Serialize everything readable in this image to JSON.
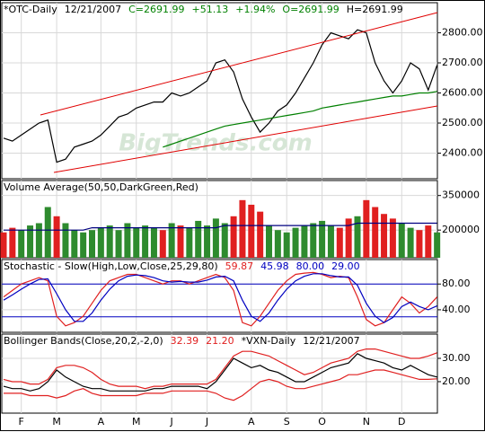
{
  "chart_data": [
    {
      "type": "line",
      "title_parts": [
        {
          "text": "*OTC-Daily",
          "color": "#000000"
        },
        {
          "text": "12/21/2007",
          "color": "#000000"
        },
        {
          "text": "C=2691.99",
          "color": "#008000"
        },
        {
          "text": "+51.13",
          "color": "#008000"
        },
        {
          "text": "+1.94%",
          "color": "#008000"
        },
        {
          "text": "O=2691.99",
          "color": "#008000"
        },
        {
          "text": "H=2691.99",
          "color": "#000000"
        }
      ],
      "watermark": "BigTrends.com",
      "ylim": [
        2315,
        2900
      ],
      "yticks": [
        {
          "value": 2400,
          "label": "2400.00"
        },
        {
          "value": 2500,
          "label": "2500.00"
        },
        {
          "value": 2600,
          "label": "2600.00"
        },
        {
          "value": 2700,
          "label": "2700.00"
        },
        {
          "value": 2800,
          "label": "2800.00"
        }
      ],
      "series": [
        {
          "color": "#000000",
          "values": [
            2450,
            2440,
            2460,
            2480,
            2500,
            2510,
            2370,
            2380,
            2420,
            2430,
            2440,
            2460,
            2490,
            2520,
            2530,
            2550,
            2560,
            2570,
            2570,
            2600,
            2590,
            2600,
            2620,
            2640,
            2700,
            2710,
            2670,
            2580,
            2520,
            2470,
            2500,
            2540,
            2560,
            2600,
            2650,
            2700,
            2760,
            2800,
            2790,
            2780,
            2810,
            2800,
            2700,
            2640,
            2600,
            2640,
            2700,
            2680,
            2610,
            2691.99
          ]
        },
        {
          "color": "#008000",
          "values": [
            null,
            null,
            null,
            null,
            null,
            null,
            null,
            null,
            null,
            null,
            null,
            null,
            null,
            null,
            null,
            null,
            null,
            null,
            2420,
            2430,
            2440,
            2450,
            2460,
            2470,
            2480,
            2490,
            2495,
            2500,
            2505,
            2510,
            2515,
            2520,
            2525,
            2530,
            2535,
            2540,
            2550,
            2555,
            2560,
            2565,
            2570,
            2575,
            2580,
            2585,
            2590,
            2590,
            2595,
            2600,
            2600,
            2605
          ]
        }
      ]
    },
    {
      "type": "bar",
      "title_parts": [
        {
          "text": "Volume Average(50,50,DarkGreen,Red)",
          "color": "#000000"
        }
      ],
      "ylim": [
        80000,
        415000
      ],
      "yticks": [
        200000,
        350000
      ],
      "bars": {
        "values": [
          190000,
          210000,
          200000,
          220000,
          230000,
          300000,
          260000,
          230000,
          200000,
          190000,
          200000,
          210000,
          220000,
          200000,
          230000,
          210000,
          220000,
          210000,
          200000,
          230000,
          220000,
          210000,
          240000,
          220000,
          250000,
          230000,
          260000,
          330000,
          310000,
          280000,
          220000,
          200000,
          190000,
          210000,
          220000,
          230000,
          240000,
          220000,
          210000,
          250000,
          260000,
          330000,
          300000,
          270000,
          250000,
          230000,
          210000,
          200000,
          220000,
          190000
        ],
        "colors": [
          "#e02020",
          "#e02020",
          "#2e8b2e",
          "#2e8b2e",
          "#2e8b2e",
          "#2e8b2e",
          "#e02020",
          "#2e8b2e",
          "#2e8b2e",
          "#2e8b2e",
          "#2e8b2e",
          "#2e8b2e",
          "#2e8b2e",
          "#2e8b2e",
          "#2e8b2e",
          "#2e8b2e",
          "#2e8b2e",
          "#2e8b2e",
          "#e02020",
          "#2e8b2e",
          "#e02020",
          "#2e8b2e",
          "#2e8b2e",
          "#2e8b2e",
          "#2e8b2e",
          "#2e8b2e",
          "#e02020",
          "#e02020",
          "#e02020",
          "#e02020",
          "#2e8b2e",
          "#2e8b2e",
          "#2e8b2e",
          "#2e8b2e",
          "#2e8b2e",
          "#2e8b2e",
          "#2e8b2e",
          "#2e8b2e",
          "#e02020",
          "#e02020",
          "#2e8b2e",
          "#e02020",
          "#e02020",
          "#e02020",
          "#e02020",
          "#2e8b2e",
          "#2e8b2e",
          "#e02020",
          "#e02020",
          "#2e8b2e"
        ]
      },
      "series": [
        {
          "color": "#000080",
          "values": [
            200000,
            200000,
            200000,
            200000,
            200000,
            200000,
            200000,
            200000,
            200000,
            200000,
            210000,
            210000,
            210000,
            210000,
            210000,
            210000,
            210000,
            210000,
            210000,
            210000,
            210000,
            210000,
            210000,
            210000,
            210000,
            220000,
            220000,
            220000,
            220000,
            220000,
            220000,
            220000,
            220000,
            220000,
            220000,
            220000,
            220000,
            220000,
            220000,
            220000,
            230000,
            230000,
            230000,
            230000,
            230000,
            230000,
            230000,
            230000,
            230000,
            230000
          ]
        }
      ]
    },
    {
      "type": "line",
      "title_parts": [
        {
          "text": "Stochastic - Slow(High,Low,Close,25,29,80)",
          "color": "#000000"
        },
        {
          "text": "59.87",
          "color": "#e02020"
        },
        {
          "text": "45.98",
          "color": "#0000c0"
        },
        {
          "text": "80.00",
          "color": "#0000c0"
        },
        {
          "text": "29.00",
          "color": "#0000c0"
        }
      ],
      "ylim": [
        5,
        118
      ],
      "yticks": [
        {
          "value": 40,
          "label": "40.00"
        },
        {
          "value": 80,
          "label": "80.00"
        }
      ],
      "hlines": [
        80,
        29
      ],
      "hline_color": "#0000c0",
      "series": [
        {
          "color": "#e02020",
          "values": [
            60,
            70,
            80,
            85,
            90,
            85,
            30,
            15,
            20,
            30,
            50,
            70,
            85,
            90,
            95,
            95,
            90,
            85,
            80,
            85,
            85,
            80,
            85,
            90,
            95,
            90,
            70,
            20,
            15,
            30,
            50,
            70,
            85,
            95,
            97,
            98,
            95,
            90,
            92,
            90,
            60,
            25,
            15,
            20,
            40,
            60,
            50,
            35,
            45,
            59.87
          ]
        },
        {
          "color": "#0000c0",
          "values": [
            55,
            63,
            72,
            80,
            87,
            88,
            65,
            40,
            22,
            22,
            35,
            55,
            72,
            85,
            92,
            94,
            93,
            90,
            85,
            83,
            84,
            83,
            83,
            86,
            91,
            92,
            85,
            55,
            30,
            22,
            35,
            55,
            72,
            85,
            92,
            96,
            96,
            93,
            91,
            91,
            78,
            50,
            30,
            20,
            28,
            45,
            52,
            45,
            40,
            45.98
          ]
        }
      ]
    },
    {
      "type": "line",
      "title_parts": [
        {
          "text": "Bollinger Bands(Close,20,2,-2,0)",
          "color": "#000000"
        },
        {
          "text": "32.39",
          "color": "#e02020"
        },
        {
          "text": "21.20",
          "color": "#e02020"
        },
        {
          "text": "*VXN-Daily",
          "color": "#000000"
        },
        {
          "text": "12/21/2007",
          "color": "#000000"
        }
      ],
      "ylim": [
        6.5,
        40.4
      ],
      "yticks": [
        {
          "value": 20,
          "label": "20.00"
        },
        {
          "value": 30,
          "label": "30.00"
        }
      ],
      "categories": [
        null,
        null,
        "F",
        null,
        null,
        null,
        "M",
        null,
        null,
        null,
        null,
        "A",
        null,
        null,
        null,
        "M",
        null,
        null,
        null,
        "J",
        null,
        null,
        null,
        "J",
        null,
        null,
        null,
        null,
        "A",
        null,
        null,
        null,
        "S",
        null,
        null,
        null,
        "O",
        null,
        null,
        null,
        null,
        "N",
        null,
        null,
        null,
        "D",
        null,
        null,
        null,
        null
      ],
      "series": [
        {
          "color": "#000000",
          "values": [
            18,
            17,
            17,
            16,
            17,
            20,
            25,
            22,
            20,
            18,
            17,
            17,
            16,
            16,
            16,
            16,
            16,
            17,
            17,
            18,
            18,
            18,
            18,
            17,
            20,
            25,
            30,
            28,
            26,
            27,
            25,
            24,
            22,
            20,
            20,
            22,
            24,
            26,
            27,
            28,
            32,
            30,
            29,
            28,
            26,
            25,
            27,
            25,
            23,
            22
          ]
        },
        {
          "color": "#e02020",
          "values": [
            21,
            20,
            20,
            19,
            19,
            21,
            26,
            27,
            27,
            26,
            24,
            21,
            19,
            18,
            18,
            18,
            17,
            18,
            18,
            19,
            19,
            19,
            19,
            19,
            21,
            26,
            31,
            33,
            33,
            32,
            31,
            29,
            27,
            25,
            23,
            24,
            26,
            28,
            29,
            30,
            33,
            34,
            34,
            33,
            32,
            31,
            30,
            30,
            31,
            32.39
          ]
        },
        {
          "color": "#e02020",
          "values": [
            15,
            15,
            15,
            14,
            14,
            14,
            13,
            14,
            16,
            17,
            15,
            14,
            14,
            14,
            14,
            14,
            15,
            15,
            15,
            16,
            16,
            16,
            16,
            16,
            15,
            13,
            12,
            14,
            17,
            20,
            21,
            20,
            18,
            17,
            17,
            18,
            19,
            20,
            21,
            23,
            23,
            24,
            25,
            25,
            24,
            23,
            22,
            21,
            21,
            21.2
          ]
        }
      ]
    }
  ]
}
